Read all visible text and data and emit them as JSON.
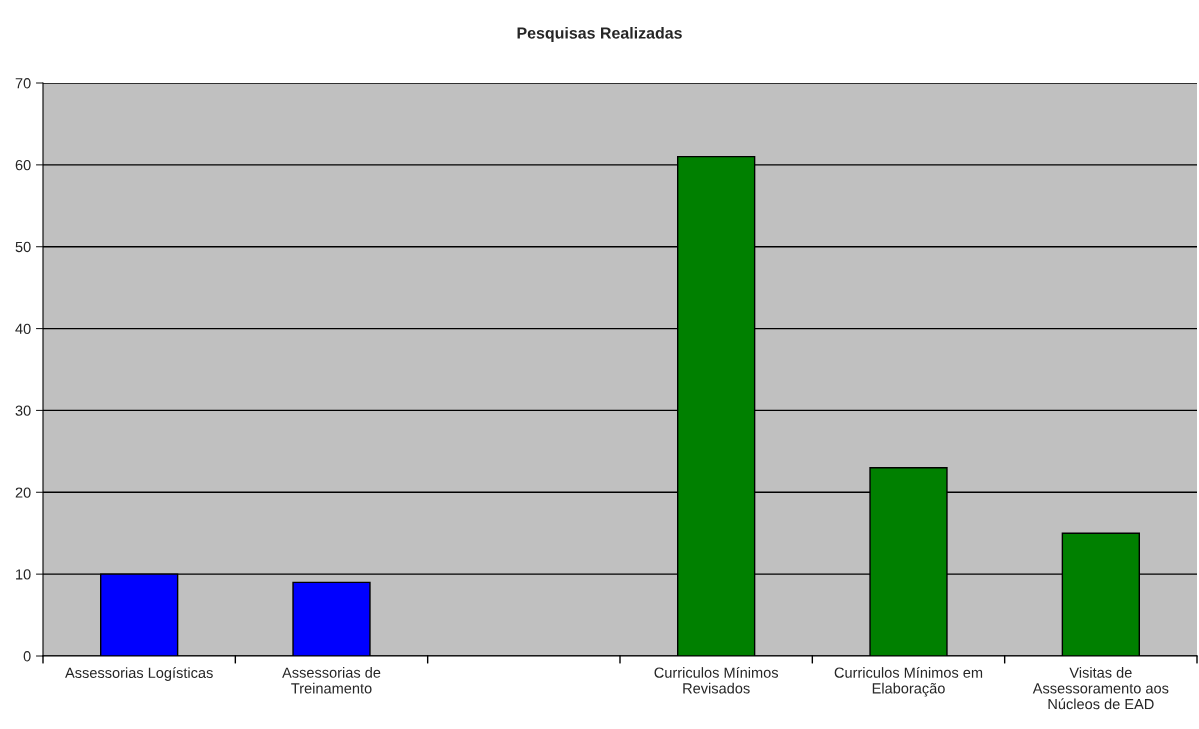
{
  "chart_data": {
    "type": "bar",
    "title": "Pesquisas Realizadas",
    "categories": [
      "Assessorias Logísticas",
      "Assessorias de\nTreinamento",
      null,
      "Curriculos Mínimos\nRevisados",
      "Curriculos Mínimos em\nElaboração",
      "Visitas de\nAssessoramento aos\nNúcleos de EAD"
    ],
    "values": [
      10,
      9,
      null,
      61,
      23,
      15
    ],
    "colors": [
      "#0000ff",
      "#0000ff",
      "#0000ff",
      "#008000",
      "#008000",
      "#008000"
    ],
    "ylim": [
      0,
      70
    ],
    "yticks": [
      0,
      10,
      20,
      30,
      40,
      50,
      60,
      70
    ],
    "grid": "y",
    "legend": false
  }
}
